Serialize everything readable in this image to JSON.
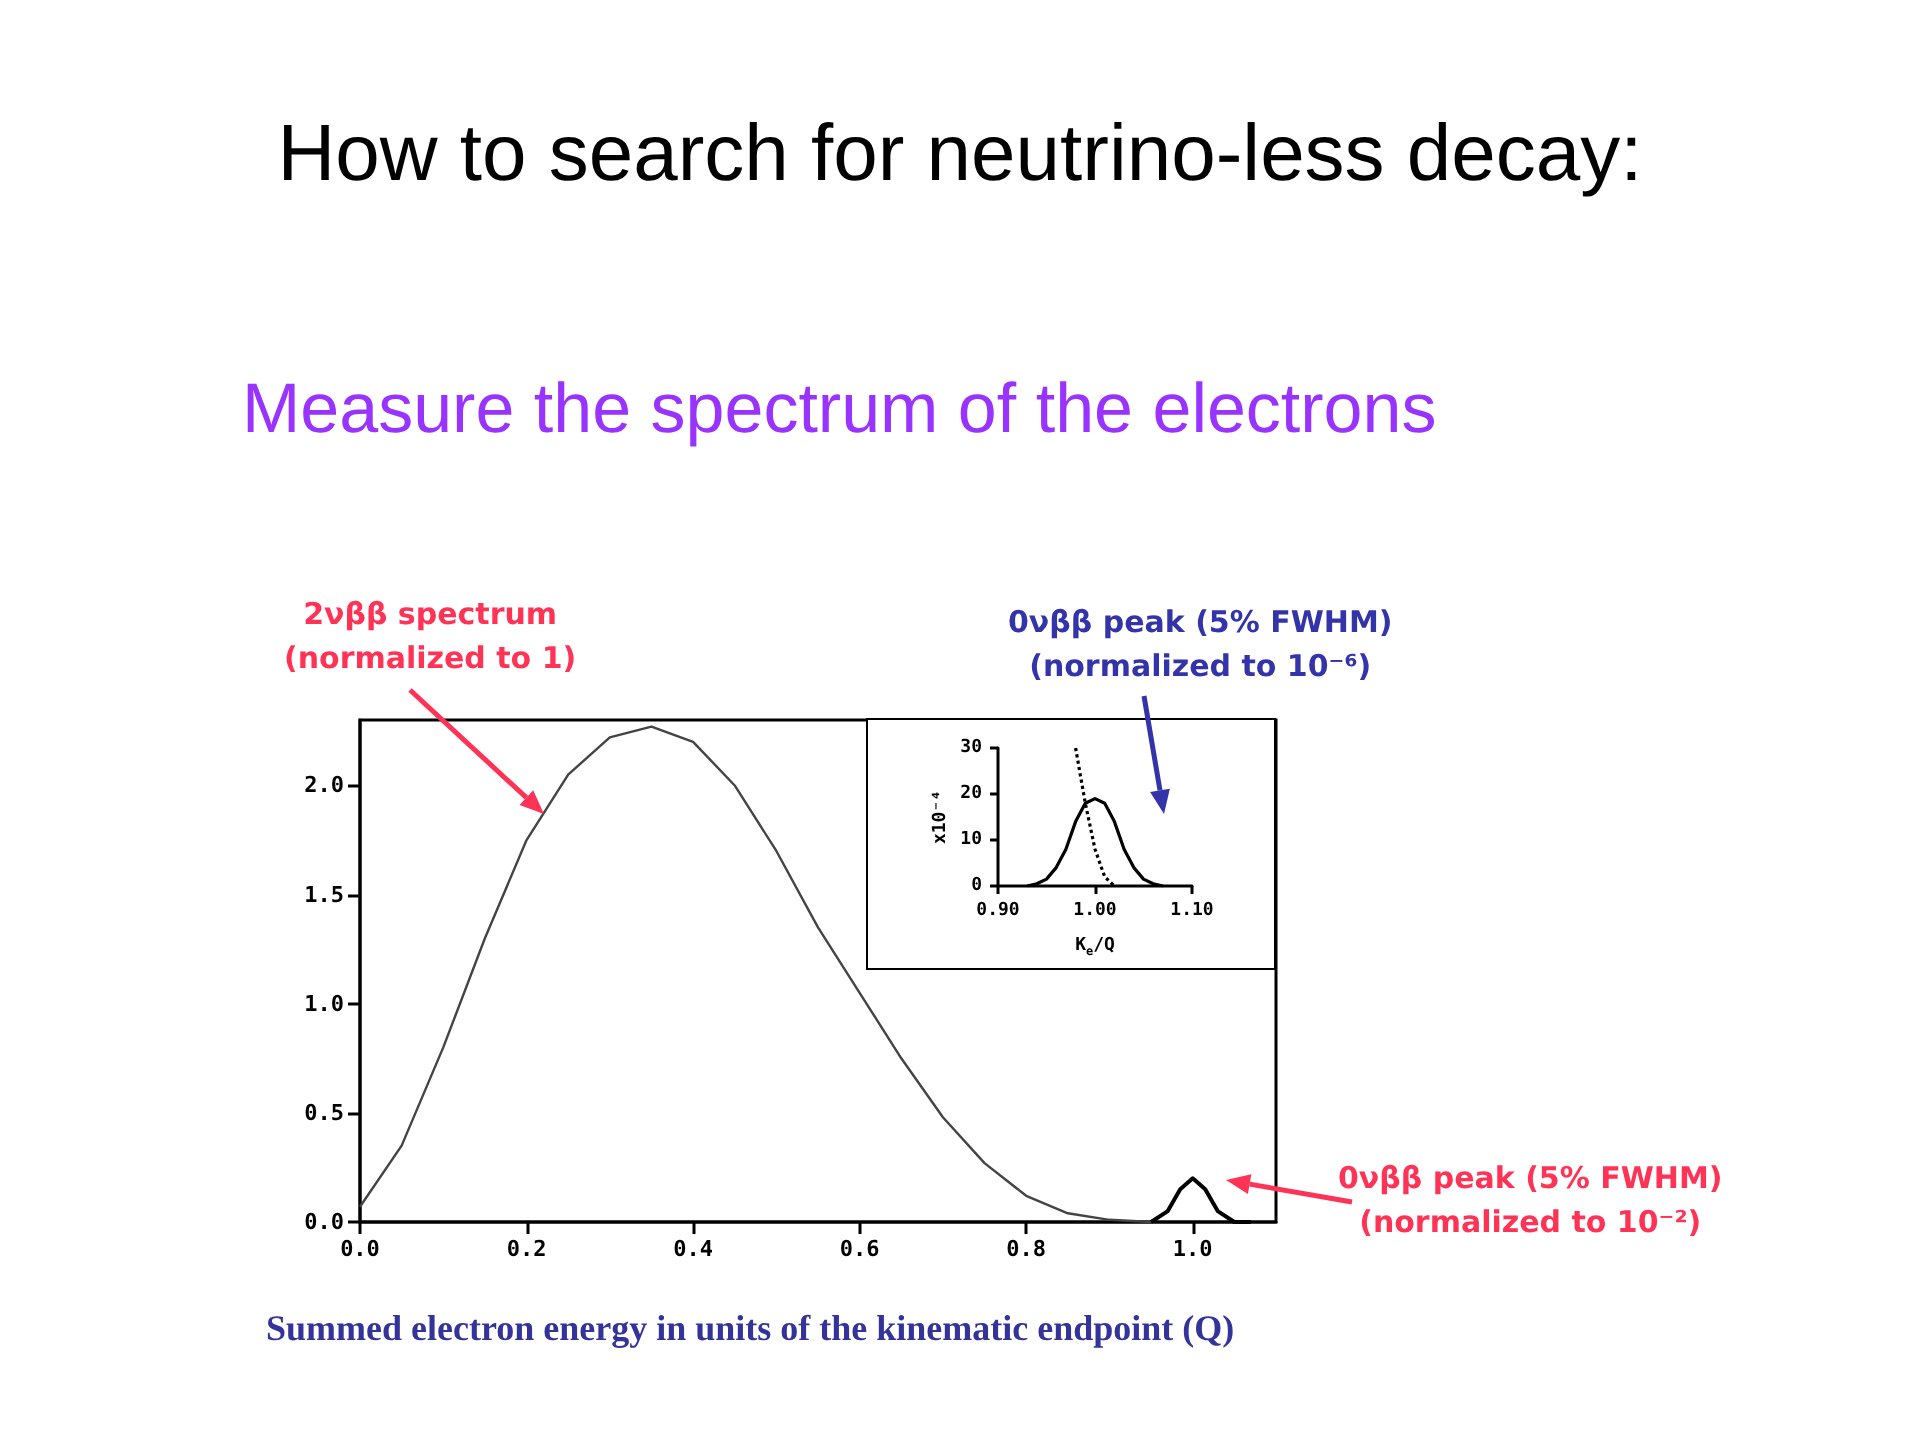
{
  "chart_data": [
    {
      "type": "line",
      "title": "How to search for neutrino-less decay:",
      "subtitle": "Measure the spectrum of the electrons",
      "xlabel": "Summed electron energy in units of the kinematic endpoint (Q)",
      "annotations": [
        "2νββ spectrum\n(normalized to 1)",
        "0νββ peak (5% FWHM)\n(normalized to 10⁻²)"
      ],
      "xlim": [
        0,
        1.1
      ],
      "ylim": [
        0,
        2.3
      ],
      "xticks": [
        {
          "value": 0,
          "label": "0.0"
        },
        {
          "value": 0.2,
          "label": "0.2"
        },
        {
          "value": 0.4,
          "label": "0.4"
        },
        {
          "value": 0.6,
          "label": "0.6"
        },
        {
          "value": 0.8,
          "label": "0.8"
        },
        {
          "value": 1,
          "label": "1.0"
        }
      ],
      "yticks": [
        {
          "value": 0,
          "label": "0.0"
        },
        {
          "value": 0.5,
          "label": "0.5"
        },
        {
          "value": 1,
          "label": "1.0"
        },
        {
          "value": 1.5,
          "label": "1.5"
        },
        {
          "value": 2,
          "label": "2.0"
        }
      ],
      "series": [
        {
          "color": "#444444",
          "x": [
            0,
            0.05,
            0.1,
            0.15,
            0.2,
            0.25,
            0.3,
            0.35,
            0.4,
            0.45,
            0.5,
            0.55,
            0.6,
            0.65,
            0.7,
            0.75,
            0.8,
            0.85,
            0.9,
            0.95
          ],
          "values": [
            0.07,
            0.35,
            0.8,
            1.3,
            1.75,
            2.05,
            2.22,
            2.27,
            2.2,
            2.0,
            1.7,
            1.35,
            1.05,
            0.75,
            0.48,
            0.27,
            0.12,
            0.04,
            0.01,
            0
          ]
        },
        {
          "color": "#000000",
          "x": [
            0.95,
            0.97,
            0.985,
            1.0,
            1.015,
            1.03,
            1.05,
            1.07
          ],
          "values": [
            0,
            0.05,
            0.15,
            0.2,
            0.15,
            0.05,
            0,
            0
          ]
        }
      ]
    },
    {
      "type": "line",
      "xlabel": "K$_{e}$/Q",
      "ylabel": "x10⁻⁴",
      "annotations": [
        "0νββ peak (5% FWHM)\n(normalized to 10⁻⁶)"
      ],
      "xlim": [
        0.9,
        1.1
      ],
      "ylim": [
        0,
        30
      ],
      "xticks": [
        {
          "value": 0.9,
          "label": "0.90"
        },
        {
          "value": 1,
          "label": "1.00"
        },
        {
          "value": 1.1,
          "label": "1.10"
        }
      ],
      "yticks": [
        0,
        10,
        20,
        30
      ],
      "series": [
        {
          "color": "#000000",
          "line_style": "dotted",
          "x": [
            0.98,
            0.99,
            1.0,
            1.01,
            1.02
          ],
          "values": [
            30,
            18,
            8,
            2,
            0
          ]
        },
        {
          "color": "#000000",
          "x": [
            0.93,
            0.94,
            0.95,
            0.96,
            0.97,
            0.98,
            0.99,
            1.0,
            1.01,
            1.02,
            1.03,
            1.04,
            1.05,
            1.06,
            1.07
          ],
          "values": [
            0,
            0.5,
            1.5,
            4,
            8,
            14,
            18,
            19,
            18,
            14,
            8,
            4,
            1.5,
            0.5,
            0
          ]
        }
      ]
    }
  ]
}
